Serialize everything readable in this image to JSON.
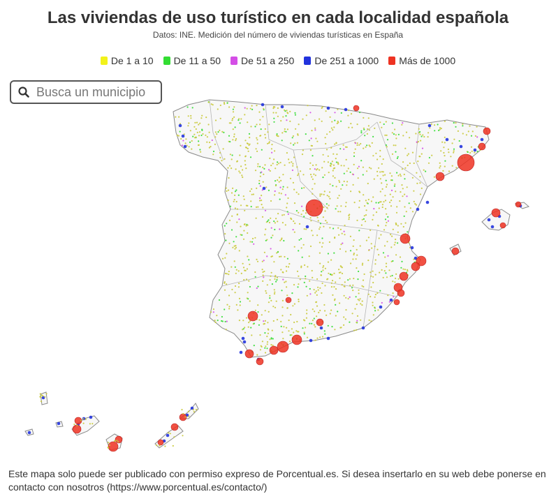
{
  "title": "Las viviendas de uso turístico en cada localidad española",
  "subtitle": "Datos: INE. Medición del número de viviendas turísticas en España",
  "legend": [
    {
      "label": "De 1 a 10",
      "color": "#f2f21a"
    },
    {
      "label": "De 11 a 50",
      "color": "#33dd33"
    },
    {
      "label": "De 51 a 250",
      "color": "#d44ee6"
    },
    {
      "label": "De 251 a 1000",
      "color": "#2233dd"
    },
    {
      "label": "Más de 1000",
      "color": "#ee3322"
    }
  ],
  "search": {
    "placeholder": "Busca un municipio",
    "icon": "search-icon"
  },
  "footer": "Este mapa solo puede ser publicado con permiso expreso de Porcentual.es. Si desea insertarlo en su web debe ponerse en contacto con nosotros (https://www.porcentual.es/contacto/)"
}
